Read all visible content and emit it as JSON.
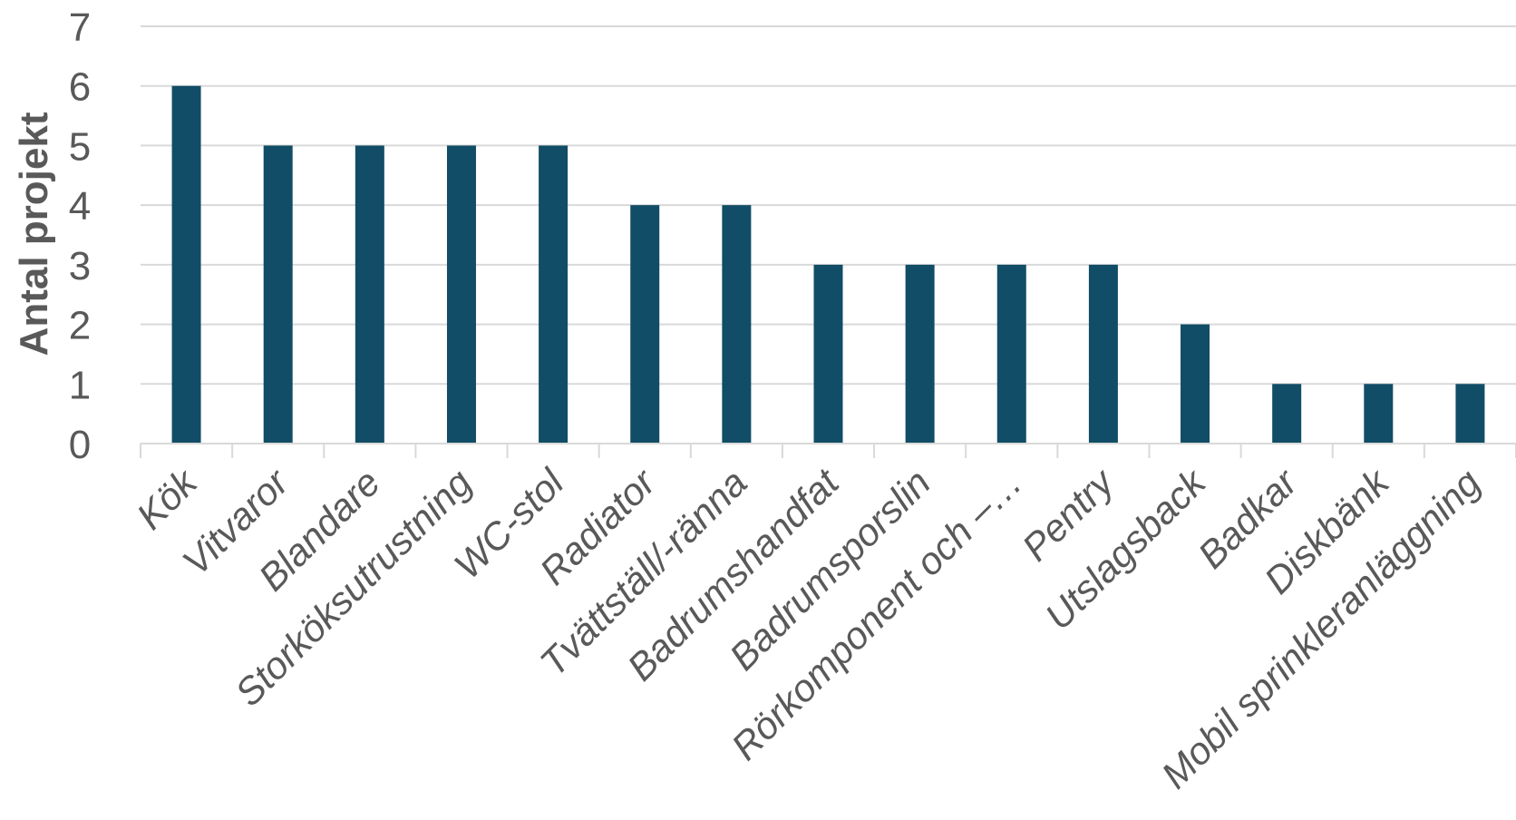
{
  "chart_data": {
    "type": "bar",
    "title": "",
    "xlabel": "",
    "ylabel": "Antal projekt",
    "ylim": [
      0,
      7
    ],
    "yticks": [
      0,
      1,
      2,
      3,
      4,
      5,
      6,
      7
    ],
    "grid": true,
    "legend": "none",
    "bar_color": "#114d66",
    "categories": [
      "Kök",
      "Vitvaror",
      "Blandare",
      "Storköksutrustning",
      "WC-stol",
      "Radiator",
      "Tvättställ/-ränna",
      "Badrumshandfat",
      "Badrumsporslin",
      "Rörkomponent och –…",
      "Pentry",
      "Utslagsback",
      "Badkar",
      "Diskbänk",
      "Mobil sprinkleranläggning"
    ],
    "values": [
      6,
      5,
      5,
      5,
      5,
      4,
      4,
      3,
      3,
      3,
      3,
      2,
      1,
      1,
      1
    ]
  }
}
